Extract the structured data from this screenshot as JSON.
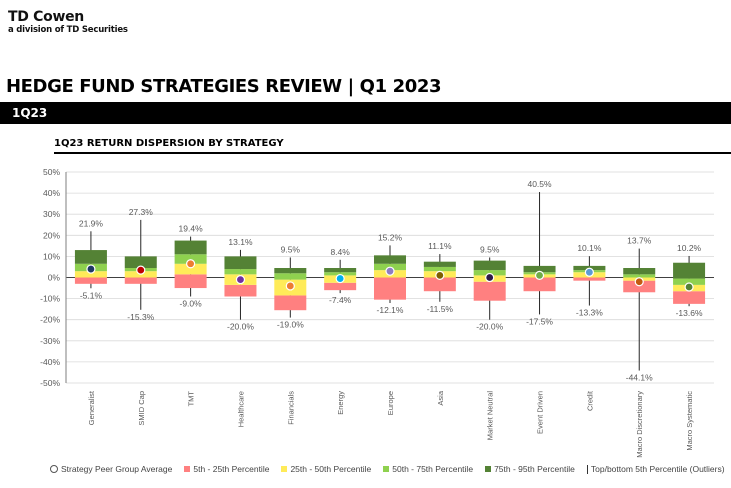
{
  "header": {
    "brand_name": "TD Cowen",
    "brand_sub": "a division of TD Securities",
    "title": "HEDGE FUND STRATEGIES REVIEW | Q1 2023",
    "band": "1Q23"
  },
  "legend": {
    "average": "Strategy Peer Group Average",
    "p5_25": "5th - 25th Percentile",
    "p25_50": "25th - 50th Percentile",
    "p50_75": "50th - 75th Percentile",
    "p75_95": "75th - 95th Percentile",
    "outliers": "Top/bottom 5th Percentile (Outliers)"
  },
  "chart_data": {
    "type": "box",
    "title": "1Q23 RETURN DISPERSION BY STRATEGY",
    "xlabel": "",
    "ylabel": "",
    "ylim": [
      -50,
      50
    ],
    "y_ticks": [
      "50%",
      "40%",
      "30%",
      "20%",
      "10%",
      "0%",
      "-10%",
      "-20%",
      "-30%",
      "-40%",
      "-50%"
    ],
    "grid": true,
    "colors": {
      "p5_25": "#ff8080",
      "p25_50": "#ffeb59",
      "p50_75": "#8fd14f",
      "p75_95": "#548235",
      "gridline": "#d9d9d9",
      "axis": "#7f7f7f"
    },
    "categories": [
      "Generalist",
      "SMID Cap",
      "TMT",
      "Healthcare",
      "Financials",
      "Energy",
      "Europe",
      "Asia",
      "Market Neutral",
      "Event Driven",
      "Credit",
      "Macro Discretionary",
      "Macro Systematic"
    ],
    "series": [
      {
        "name": "Top 5th Percentile",
        "values": [
          21.9,
          27.3,
          19.4,
          13.1,
          9.5,
          8.4,
          15.2,
          11.1,
          9.5,
          40.5,
          10.1,
          13.7,
          10.2
        ]
      },
      {
        "name": "95th Percentile",
        "values": [
          13.0,
          10.0,
          17.5,
          10.0,
          4.5,
          4.5,
          10.5,
          7.5,
          8.0,
          5.5,
          5.5,
          4.5,
          7.0
        ]
      },
      {
        "name": "75th Percentile",
        "values": [
          6.5,
          4.5,
          11.0,
          4.0,
          2.0,
          2.5,
          6.5,
          5.0,
          3.5,
          2.5,
          3.5,
          1.5,
          -0.5
        ]
      },
      {
        "name": "50th Percentile",
        "values": [
          3.0,
          3.0,
          6.5,
          1.5,
          -1.0,
          1.0,
          3.5,
          3.0,
          1.0,
          1.5,
          2.5,
          0.0,
          -3.5
        ]
      },
      {
        "name": "25th Percentile",
        "values": [
          0.0,
          0.0,
          1.5,
          -3.5,
          -8.5,
          -2.5,
          0.0,
          0.0,
          -2.0,
          0.0,
          0.0,
          -1.5,
          -6.5
        ]
      },
      {
        "name": "5th Percentile",
        "values": [
          -3.0,
          -3.0,
          -5.0,
          -9.0,
          -15.5,
          -6.0,
          -10.5,
          -6.5,
          -11.0,
          -6.5,
          -1.5,
          -7.0,
          -12.5
        ]
      },
      {
        "name": "Bottom 5th Percentile",
        "values": [
          -5.1,
          -15.3,
          -9.0,
          -20.0,
          -19.0,
          -7.4,
          -12.1,
          -11.5,
          -20.0,
          -17.5,
          -13.3,
          -44.1,
          -13.6
        ]
      },
      {
        "name": "Strategy Peer Group Average",
        "values": [
          4.0,
          3.5,
          6.5,
          -1.0,
          -4.0,
          -0.5,
          3.0,
          1.0,
          0.0,
          1.0,
          2.5,
          -2.0,
          -4.5
        ]
      }
    ],
    "average_colors": [
      "#1f3864",
      "#c00000",
      "#ed7d31",
      "#7030a0",
      "#ed7d31",
      "#00b0f0",
      "#8e7cc3",
      "#7f6000",
      "#2e1a47",
      "#70ad47",
      "#5b9bd5",
      "#c55a11",
      "#548235"
    ],
    "top_labels": [
      "21.9%",
      "27.3%",
      "19.4%",
      "13.1%",
      "9.5%",
      "8.4%",
      "15.2%",
      "11.1%",
      "9.5%",
      "40.5%",
      "10.1%",
      "13.7%",
      "10.2%"
    ],
    "bottom_labels": [
      "-5.1%",
      "-15.3%",
      "-9.0%",
      "-20.0%",
      "-19.0%",
      "-7.4%",
      "-12.1%",
      "-11.5%",
      "-20.0%",
      "-17.5%",
      "-13.3%",
      "-44.1%",
      "-13.6%"
    ]
  }
}
